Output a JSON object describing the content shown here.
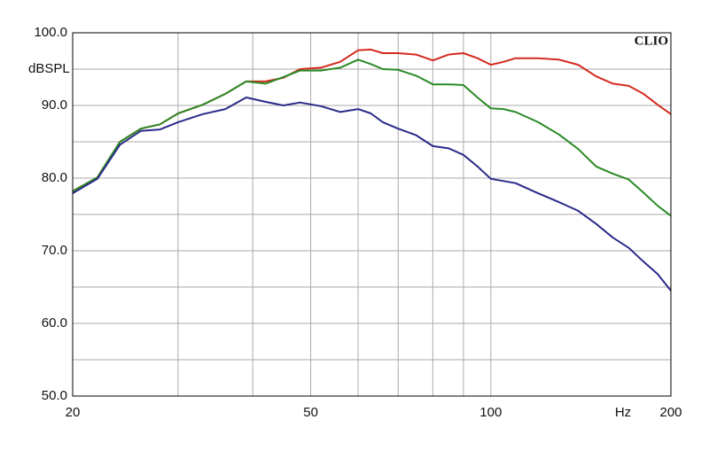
{
  "chart_data": {
    "type": "line",
    "watermark": "CLIO",
    "y_label": "dBSPL",
    "x_label": "Hz",
    "xscale": "log",
    "grid": true,
    "x": [
      20,
      22,
      24,
      26,
      28,
      30,
      33,
      36,
      39,
      42,
      45,
      48,
      52,
      56,
      60,
      63,
      66,
      70,
      75,
      80,
      85,
      90,
      95,
      100,
      105,
      110,
      120,
      130,
      140,
      150,
      160,
      170,
      180,
      190,
      200
    ],
    "xlim": [
      20,
      200
    ],
    "xticks": [
      20,
      50,
      100,
      200
    ],
    "xminor": [
      30,
      40,
      60,
      70,
      80,
      90
    ],
    "ylim": [
      50,
      100
    ],
    "yticks": [
      {
        "value": 50,
        "label": "50.0"
      },
      {
        "value": 60,
        "label": "60.0"
      },
      {
        "value": 70,
        "label": "70.0"
      },
      {
        "value": 80,
        "label": "80.0"
      },
      {
        "value": 90,
        "label": "90.0"
      },
      {
        "value": 100,
        "label": "100.0"
      }
    ],
    "yminor": [
      55,
      65,
      75,
      85,
      95
    ],
    "series": [
      {
        "color": "#d42a1e",
        "values": [
          78.2,
          80.1,
          85,
          86.8,
          87.4,
          88.9,
          90.1,
          91.6,
          93.3,
          93.3,
          93.8,
          95,
          95.2,
          96,
          97.6,
          97.7,
          97.2,
          97.2,
          97,
          96.2,
          97,
          97.2,
          96.5,
          95.6,
          96,
          96.5,
          96.5,
          96.3,
          95.6,
          94,
          93,
          92.7,
          91.6,
          90.1,
          88.8
        ]
      },
      {
        "color": "#2a8a25",
        "values": [
          78.2,
          80.1,
          85,
          86.8,
          87.4,
          88.9,
          90.1,
          91.6,
          93.3,
          93,
          93.9,
          94.8,
          94.8,
          95.2,
          96.3,
          95.7,
          95,
          94.9,
          94.1,
          92.9,
          92.9,
          92.8,
          91.1,
          89.6,
          89.5,
          89.1,
          87.7,
          86,
          84,
          81.6,
          80.6,
          79.8,
          78,
          76.2,
          74.8
        ]
      },
      {
        "color": "#2a2a8a",
        "values": [
          77.9,
          79.9,
          84.6,
          86.5,
          86.7,
          87.7,
          88.8,
          89.5,
          91.1,
          90.5,
          90,
          90.4,
          89.9,
          89.1,
          89.5,
          88.9,
          87.7,
          86.8,
          85.9,
          84.4,
          84.1,
          83.2,
          81.6,
          79.9,
          79.6,
          79.3,
          77.9,
          76.7,
          75.5,
          73.7,
          71.8,
          70.4,
          68.5,
          66.8,
          64.5
        ]
      }
    ]
  }
}
